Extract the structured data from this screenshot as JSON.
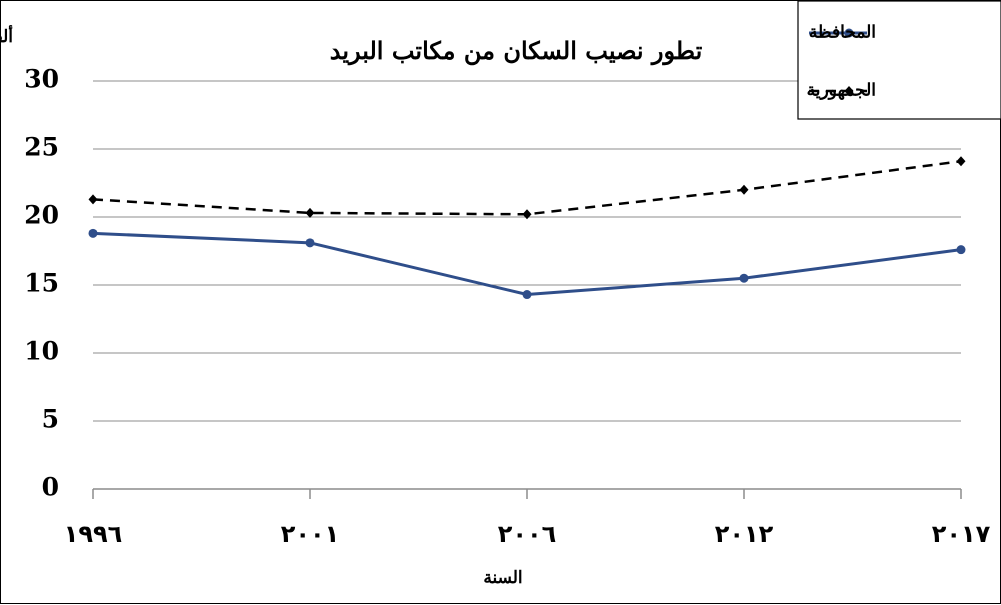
{
  "chart_data": {
    "type": "line",
    "title": "تطور نصيب السكان من مكاتب البريد",
    "ylabel": "ألف نسمة / مكتب",
    "xlabel": "السنة",
    "categories": [
      "١٩٩٦",
      "٢٠٠١",
      "٢٠٠٦",
      "٢٠١٢",
      "٢٠١٧"
    ],
    "ylim": [
      0,
      30
    ],
    "yticks": [
      0,
      5,
      10,
      15,
      20,
      25,
      30
    ],
    "grid": true,
    "legend_position": "top-right",
    "series": [
      {
        "name": "المحافظة",
        "values": [
          18.8,
          18.1,
          14.3,
          15.5,
          17.6
        ],
        "color": "#2f4e8a",
        "style": "solid",
        "marker": "circle"
      },
      {
        "name": "الجمهورية",
        "values": [
          21.3,
          20.3,
          20.2,
          22.0,
          24.1
        ],
        "color": "#000000",
        "style": "dashed",
        "marker": "diamond"
      }
    ]
  }
}
